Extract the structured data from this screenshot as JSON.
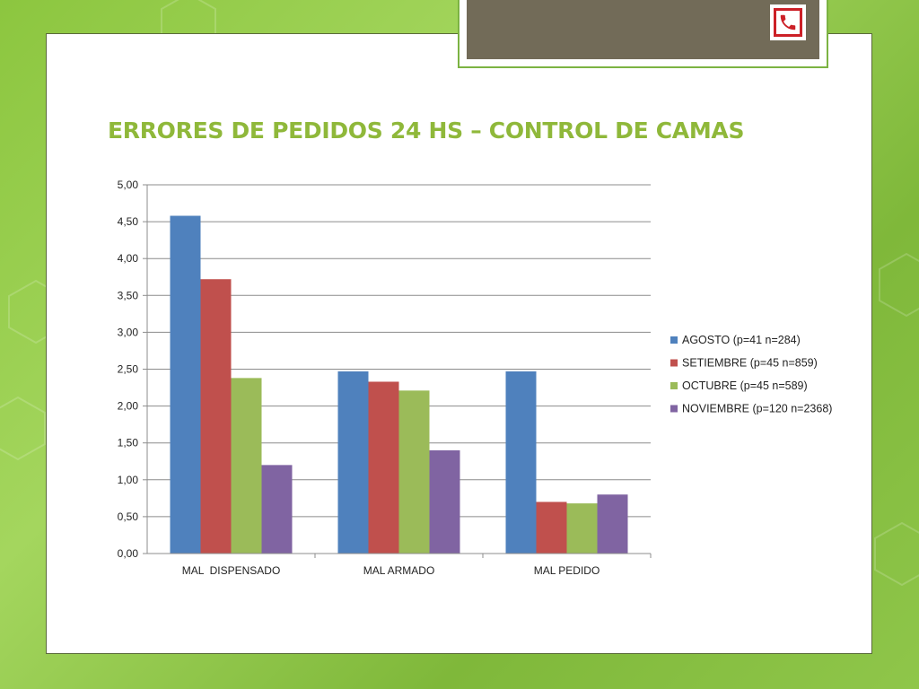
{
  "slide": {
    "title": "ERRORES DE PEDIDOS 24 HS – CONTROL DE CAMAS",
    "logo_icon": "phone-icon",
    "logo_color": "#cc2027",
    "accent_color": "#8fb83a",
    "header_bar_color": "#726b58"
  },
  "chart_data": {
    "type": "bar",
    "categories": [
      "MAL  DISPENSADO",
      "MAL ARMADO",
      "MAL PEDIDO"
    ],
    "series": [
      {
        "name": "AGOSTO (p=41 n=284)",
        "color": "#4f81bd",
        "values": [
          4.58,
          2.47,
          2.47
        ]
      },
      {
        "name": "SETIEMBRE (p=45 n=859)",
        "color": "#c0504d",
        "values": [
          3.72,
          2.33,
          0.7
        ]
      },
      {
        "name": "OCTUBRE (p=45 n=589)",
        "color": "#9bbb59",
        "values": [
          2.38,
          2.21,
          0.68
        ]
      },
      {
        "name": "NOVIEMBRE (p=120 n=2368)",
        "color": "#8064a2",
        "values": [
          1.2,
          1.4,
          0.8
        ]
      }
    ],
    "yticks": [
      "0,00",
      "0,50",
      "1,00",
      "1,50",
      "2,00",
      "2,50",
      "3,00",
      "3,50",
      "4,00",
      "4,50",
      "5,00"
    ],
    "ylim": [
      0,
      5
    ],
    "grid": true,
    "legend": "right"
  }
}
